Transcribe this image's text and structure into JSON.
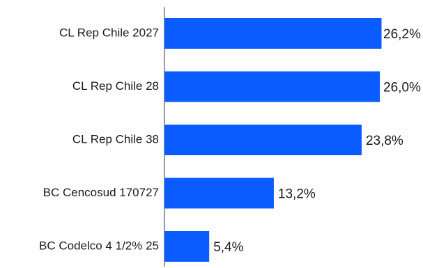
{
  "chart_data": {
    "type": "bar",
    "orientation": "horizontal",
    "categories": [
      "CL Rep Chile 2027",
      "CL Rep Chile 28",
      "CL Rep Chile 38",
      "BC Cencosud 170727",
      "BC Codelco 4 1/2% 25"
    ],
    "values": [
      26.2,
      26.0,
      23.8,
      13.2,
      5.4
    ],
    "value_labels": [
      "26,2%",
      "26,0%",
      "23,8%",
      "13,2%",
      "5,4%"
    ],
    "title": "",
    "xlabel": "",
    "ylabel": "",
    "xlim": [
      0,
      27
    ],
    "grid": false,
    "legend": "none",
    "colors": {
      "bar": "#0a5cff",
      "axis": "#333333",
      "text": "#1a1a1a"
    }
  }
}
